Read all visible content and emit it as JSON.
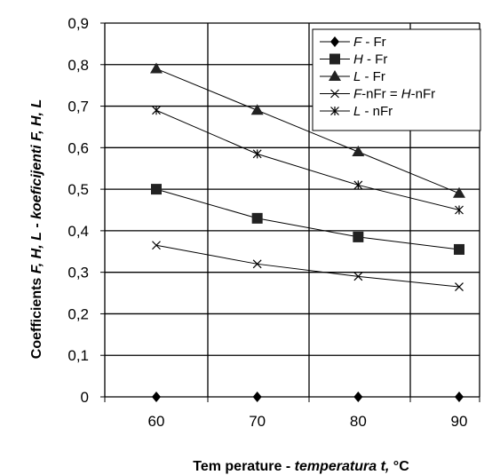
{
  "chart_data": {
    "type": "line",
    "categories": [
      "60",
      "70",
      "80",
      "90"
    ],
    "x": [
      60,
      70,
      80,
      90
    ],
    "ylim": [
      0,
      0.9
    ],
    "yticks": [
      "0",
      "0,1",
      "0,2",
      "0,3",
      "0,4",
      "0,5",
      "0,6",
      "0,7",
      "0,8",
      "0,9"
    ],
    "grid": "horizontal and vertical",
    "legend_position": "top-right",
    "ylabel": {
      "prefix": "Coefficients ",
      "letters": "F, H, L",
      "dash": " - ",
      "suffix": "koeficijenti F, H, L"
    },
    "xlabel": {
      "prefix": "Tem perature - ",
      "italic": "temperatura t,",
      "unit": " °C"
    },
    "series": [
      {
        "name": "F - Fr",
        "legend_italic": "F",
        "legend_rest": " - Fr",
        "marker": "diamond",
        "values": [
          0,
          0,
          0,
          0
        ]
      },
      {
        "name": "H - Fr",
        "legend_italic": "H",
        "legend_rest": " - Fr",
        "marker": "square",
        "values": [
          0.5,
          0.43,
          0.385,
          0.355
        ]
      },
      {
        "name": "L - Fr",
        "legend_italic": "L",
        "legend_rest": "  - Fr",
        "marker": "triangle",
        "values": [
          0.79,
          0.69,
          0.59,
          0.49
        ]
      },
      {
        "name": "F-nFr = H-nFr",
        "legend_italic": "F",
        "legend_rest": "-nFr = ",
        "legend_italic2": "H",
        "legend_rest2": "-nFr",
        "marker": "x",
        "values": [
          0.365,
          0.32,
          0.29,
          0.265
        ]
      },
      {
        "name": "L - nFr",
        "legend_italic": "L",
        "legend_rest": " - nFr",
        "marker": "star",
        "values": [
          0.69,
          0.585,
          0.51,
          0.45
        ]
      }
    ]
  }
}
